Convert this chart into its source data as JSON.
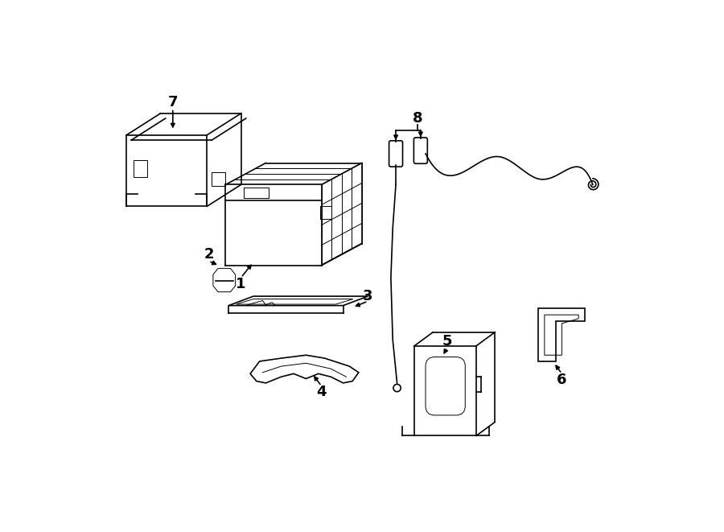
{
  "bg_color": "#ffffff",
  "line_color": "#000000",
  "lw": 1.2,
  "lw_thin": 0.7,
  "fig_width": 9.0,
  "fig_height": 6.61,
  "label_fs": 13
}
